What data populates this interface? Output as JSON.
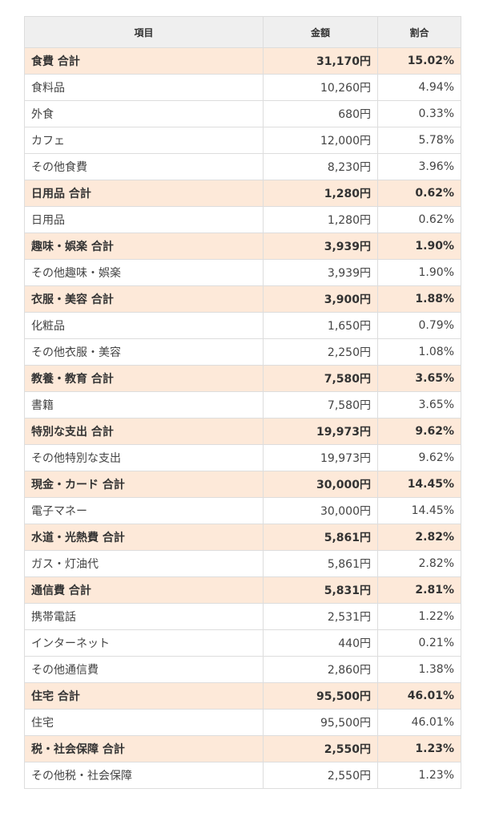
{
  "table": {
    "headers": {
      "item": "項目",
      "amount": "金額",
      "ratio": "割合"
    },
    "rows": [
      {
        "type": "total",
        "item": "食費 合計",
        "amount": "31,170円",
        "ratio": "15.02%"
      },
      {
        "type": "item",
        "item": "食料品",
        "amount": "10,260円",
        "ratio": "4.94%"
      },
      {
        "type": "item",
        "item": "外食",
        "amount": "680円",
        "ratio": "0.33%"
      },
      {
        "type": "item",
        "item": "カフェ",
        "amount": "12,000円",
        "ratio": "5.78%"
      },
      {
        "type": "item",
        "item": "その他食費",
        "amount": "8,230円",
        "ratio": "3.96%"
      },
      {
        "type": "total",
        "item": "日用品 合計",
        "amount": "1,280円",
        "ratio": "0.62%"
      },
      {
        "type": "item",
        "item": "日用品",
        "amount": "1,280円",
        "ratio": "0.62%"
      },
      {
        "type": "total",
        "item": "趣味・娯楽 合計",
        "amount": "3,939円",
        "ratio": "1.90%"
      },
      {
        "type": "item",
        "item": "その他趣味・娯楽",
        "amount": "3,939円",
        "ratio": "1.90%"
      },
      {
        "type": "total",
        "item": "衣服・美容 合計",
        "amount": "3,900円",
        "ratio": "1.88%"
      },
      {
        "type": "item",
        "item": "化粧品",
        "amount": "1,650円",
        "ratio": "0.79%"
      },
      {
        "type": "item",
        "item": "その他衣服・美容",
        "amount": "2,250円",
        "ratio": "1.08%"
      },
      {
        "type": "total",
        "item": "教養・教育 合計",
        "amount": "7,580円",
        "ratio": "3.65%"
      },
      {
        "type": "item",
        "item": "書籍",
        "amount": "7,580円",
        "ratio": "3.65%"
      },
      {
        "type": "total",
        "item": "特別な支出 合計",
        "amount": "19,973円",
        "ratio": "9.62%"
      },
      {
        "type": "item",
        "item": "その他特別な支出",
        "amount": "19,973円",
        "ratio": "9.62%"
      },
      {
        "type": "total",
        "item": "現金・カード 合計",
        "amount": "30,000円",
        "ratio": "14.45%"
      },
      {
        "type": "item",
        "item": "電子マネー",
        "amount": "30,000円",
        "ratio": "14.45%"
      },
      {
        "type": "total",
        "item": "水道・光熱費 合計",
        "amount": "5,861円",
        "ratio": "2.82%"
      },
      {
        "type": "item",
        "item": "ガス・灯油代",
        "amount": "5,861円",
        "ratio": "2.82%"
      },
      {
        "type": "total",
        "item": "通信費 合計",
        "amount": "5,831円",
        "ratio": "2.81%"
      },
      {
        "type": "item",
        "item": "携帯電話",
        "amount": "2,531円",
        "ratio": "1.22%"
      },
      {
        "type": "item",
        "item": "インターネット",
        "amount": "440円",
        "ratio": "0.21%"
      },
      {
        "type": "item",
        "item": "その他通信費",
        "amount": "2,860円",
        "ratio": "1.38%"
      },
      {
        "type": "total",
        "item": "住宅 合計",
        "amount": "95,500円",
        "ratio": "46.01%"
      },
      {
        "type": "item",
        "item": "住宅",
        "amount": "95,500円",
        "ratio": "46.01%"
      },
      {
        "type": "total",
        "item": "税・社会保障 合計",
        "amount": "2,550円",
        "ratio": "1.23%"
      },
      {
        "type": "item",
        "item": "その他税・社会保障",
        "amount": "2,550円",
        "ratio": "1.23%"
      }
    ]
  },
  "colors": {
    "header_bg": "#efefef",
    "total_row_bg": "#fde9d9",
    "border": "#dddddd"
  }
}
